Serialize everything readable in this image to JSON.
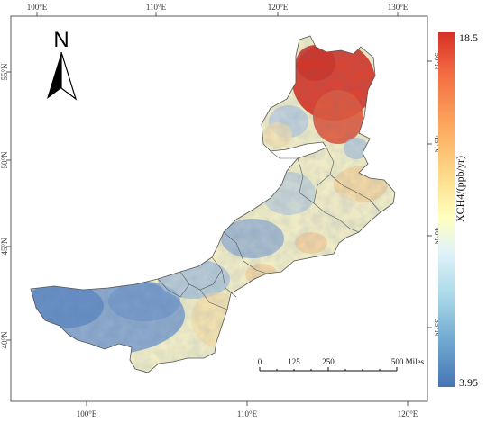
{
  "map": {
    "top_lon_labels": [
      "100°E",
      "110°E",
      "120°E",
      "130°E"
    ],
    "bottom_lon_labels": [
      "100°E",
      "110°E",
      "120°E"
    ],
    "left_lat_labels": [
      "55°N",
      "50°N",
      "45°N",
      "40°N"
    ],
    "right_lat_labels": [
      "50°N",
      "45°N",
      "40°N",
      "35°N"
    ]
  },
  "north_arrow": {
    "letter": "N"
  },
  "legend": {
    "title": "XCH4/(ppb/yr)",
    "max_label": "18.5",
    "min_label": "3.95",
    "colors": [
      "#d73027",
      "#f46d43",
      "#fdae61",
      "#fee090",
      "#ffffbf",
      "#e0f3f8",
      "#abd9e9",
      "#74add1",
      "#4575b4"
    ]
  },
  "scale_bar": {
    "labels": [
      "0",
      "125",
      "250",
      "500 Miles"
    ]
  }
}
